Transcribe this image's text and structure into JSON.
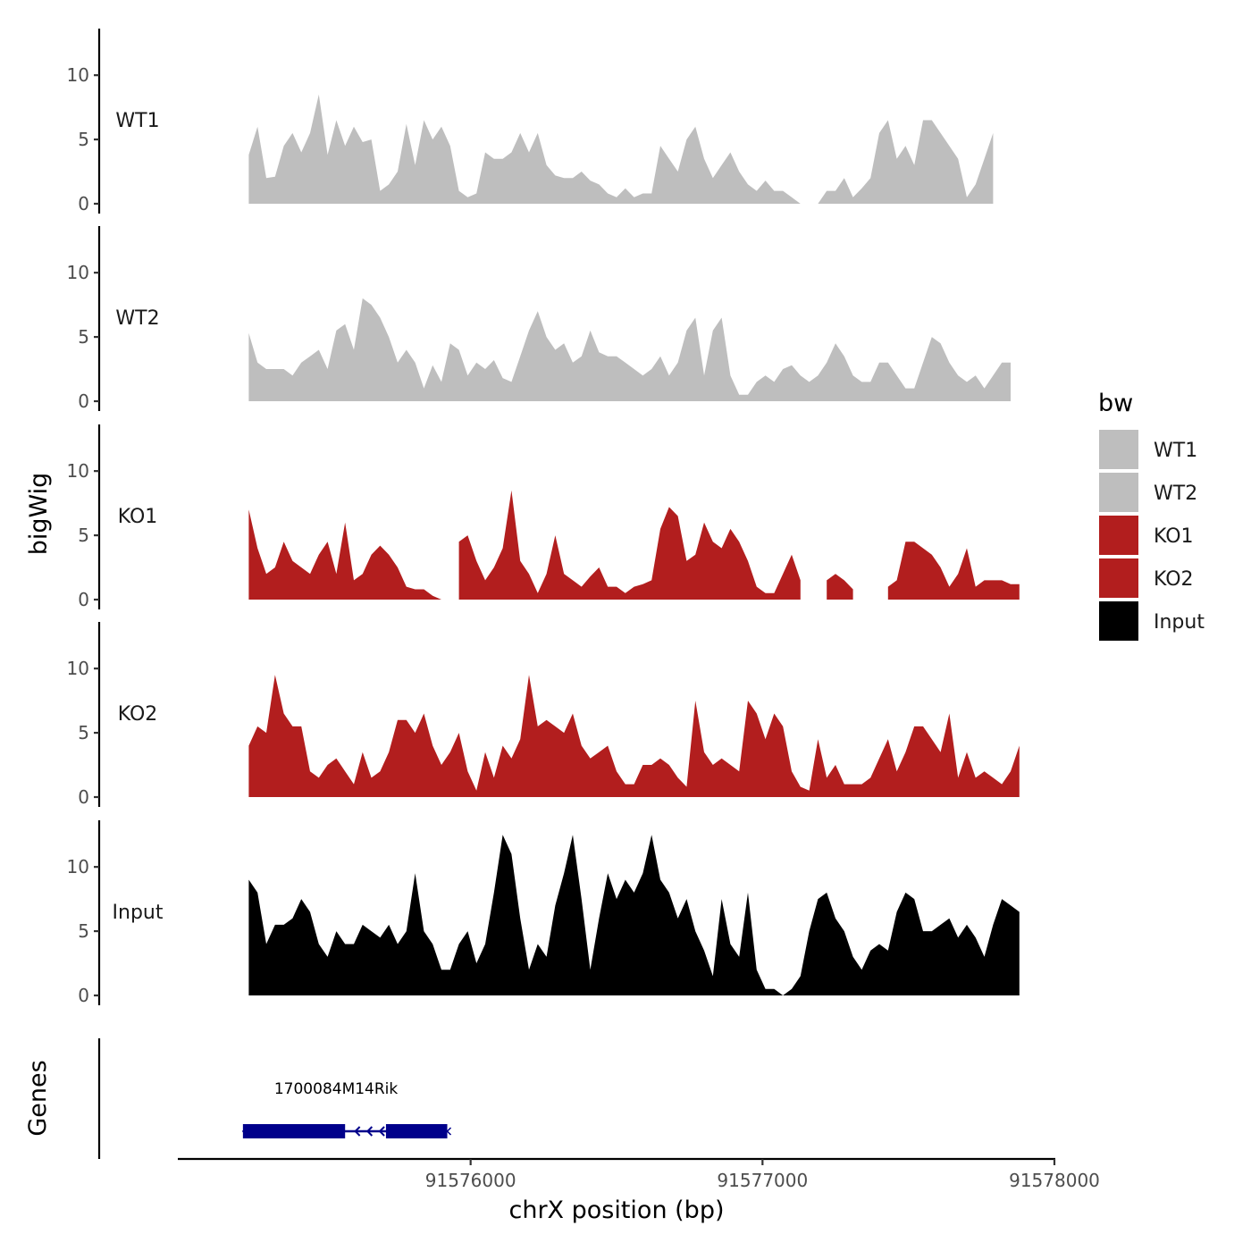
{
  "chart_data": {
    "type": "area",
    "legend": {
      "title": "bw",
      "placement": "right",
      "entries": [
        {
          "name": "WT1",
          "color": "#bebebe"
        },
        {
          "name": "WT2",
          "color": "#bebebe"
        },
        {
          "name": "KO1",
          "color": "#b21e1e"
        },
        {
          "name": "KO2",
          "color": "#b21e1e"
        },
        {
          "name": "Input",
          "color": "#000000"
        }
      ]
    },
    "ylabel": "bigWig",
    "xlabel": "chrX position (bp)",
    "xlim": [
      91575000,
      91578000
    ],
    "x_ticks": [
      91576000,
      91577000,
      91578000
    ],
    "x_tick_labels": [
      "91576000",
      "91577000",
      "91578000"
    ],
    "ylim": [
      0,
      13
    ],
    "y_ticks": [
      0,
      5,
      10
    ],
    "y_tick_labels": [
      "0",
      "5",
      "10"
    ],
    "x": [
      91575240,
      91575270,
      91575300,
      91575330,
      91575360,
      91575390,
      91575420,
      91575450,
      91575480,
      91575510,
      91575540,
      91575570,
      91575600,
      91575630,
      91575660,
      91575690,
      91575720,
      91575750,
      91575780,
      91575810,
      91575840,
      91575870,
      91575900,
      91575930,
      91575960,
      91575990,
      91576020,
      91576050,
      91576080,
      91576110,
      91576140,
      91576170,
      91576200,
      91576230,
      91576260,
      91576290,
      91576320,
      91576350,
      91576380,
      91576410,
      91576440,
      91576470,
      91576500,
      91576530,
      91576560,
      91576590,
      91576620,
      91576650,
      91576680,
      91576710,
      91576740,
      91576770,
      91576800,
      91576830,
      91576860,
      91576890,
      91576920,
      91576950,
      91576980,
      91577010,
      91577040,
      91577070,
      91577100,
      91577130,
      91577160,
      91577190,
      91577220,
      91577250,
      91577280,
      91577310,
      91577340,
      91577370,
      91577400,
      91577430,
      91577460,
      91577490,
      91577520,
      91577550,
      91577580,
      91577610,
      91577640,
      91577670,
      91577700,
      91577730,
      91577760,
      91577790,
      91577820,
      91577850,
      91577880
    ],
    "series": [
      {
        "name": "WT1",
        "color": "#bebebe",
        "values": [
          3.8,
          6.0,
          2.0,
          2.1,
          4.5,
          5.5,
          4.0,
          5.5,
          8.5,
          3.8,
          6.5,
          4.5,
          6.0,
          4.8,
          5.0,
          1.0,
          1.5,
          2.5,
          6.2,
          3.0,
          6.5,
          5.0,
          6.0,
          4.5,
          1.0,
          0.5,
          0.8,
          4.0,
          3.5,
          3.5,
          4.0,
          5.5,
          4.0,
          5.5,
          3.0,
          2.2,
          2.0,
          2.0,
          2.5,
          1.8,
          1.5,
          0.8,
          0.5,
          1.2,
          0.5,
          0.8,
          0.8,
          4.5,
          3.5,
          2.5,
          5.0,
          6.0,
          3.5,
          2.0,
          3.0,
          4.0,
          2.5,
          1.5,
          1.0,
          1.8,
          1.0,
          1.0,
          0.5,
          0.0,
          0.0,
          0.0,
          1.0,
          1.0,
          2.0,
          0.5,
          1.2,
          2.0,
          5.5,
          6.5,
          3.5,
          4.5,
          3.0,
          6.5,
          6.5,
          5.5,
          4.5,
          3.5,
          0.5,
          1.5,
          3.5,
          5.5,
          null,
          null,
          null
        ]
      },
      {
        "name": "WT2",
        "color": "#bebebe",
        "values": [
          5.3,
          3.0,
          2.5,
          2.5,
          2.5,
          2.0,
          3.0,
          3.5,
          4.0,
          2.5,
          5.5,
          6.0,
          4.0,
          8.0,
          7.5,
          6.5,
          5.0,
          3.0,
          4.0,
          3.0,
          1.0,
          2.8,
          1.5,
          4.5,
          4.0,
          2.0,
          3.0,
          2.5,
          3.2,
          1.8,
          1.5,
          3.5,
          5.5,
          7.0,
          5.0,
          4.0,
          4.5,
          3.0,
          3.5,
          5.5,
          3.8,
          3.5,
          3.5,
          3.0,
          2.5,
          2.0,
          2.5,
          3.5,
          2.0,
          3.0,
          5.5,
          6.5,
          2.0,
          5.5,
          6.5,
          2.0,
          0.5,
          0.5,
          1.5,
          2.0,
          1.5,
          2.5,
          2.8,
          2.0,
          1.5,
          2.0,
          3.0,
          4.5,
          3.5,
          2.0,
          1.5,
          1.5,
          3.0,
          3.0,
          2.0,
          1.0,
          1.0,
          3.0,
          5.0,
          4.5,
          3.0,
          2.0,
          1.5,
          2.0,
          1.0,
          2.0,
          3.0,
          3.0,
          null
        ]
      },
      {
        "name": "KO1",
        "color": "#b21e1e",
        "values": [
          7.0,
          4.0,
          2.0,
          2.5,
          4.5,
          3.0,
          2.5,
          2.0,
          3.5,
          4.5,
          2.0,
          6.0,
          1.5,
          2.0,
          3.5,
          4.2,
          3.5,
          2.5,
          1.0,
          0.8,
          0.8,
          0.3,
          0.0,
          null,
          4.5,
          5.0,
          3.0,
          1.5,
          2.5,
          4.0,
          8.5,
          3.0,
          2.0,
          0.5,
          2.0,
          5.0,
          2.0,
          1.5,
          1.0,
          1.8,
          2.5,
          1.0,
          1.0,
          0.5,
          1.0,
          1.2,
          1.5,
          5.5,
          7.2,
          6.5,
          3.0,
          3.5,
          6.0,
          4.5,
          4.0,
          5.5,
          4.5,
          3.0,
          1.0,
          0.5,
          0.5,
          2.0,
          3.5,
          1.5,
          null,
          null,
          1.5,
          2.0,
          1.5,
          0.8,
          null,
          null,
          null,
          1.0,
          1.5,
          4.5,
          4.5,
          4.0,
          3.5,
          2.5,
          1.0,
          2.0,
          4.0,
          1.0,
          1.5,
          1.5,
          1.5,
          1.2,
          1.2
        ]
      },
      {
        "name": "KO2",
        "color": "#b21e1e",
        "values": [
          4.0,
          5.5,
          5.0,
          9.5,
          6.5,
          5.5,
          5.5,
          2.0,
          1.5,
          2.5,
          3.0,
          2.0,
          1.0,
          3.5,
          1.5,
          2.0,
          3.5,
          6.0,
          6.0,
          5.0,
          6.5,
          4.0,
          2.5,
          3.5,
          5.0,
          2.0,
          0.5,
          3.5,
          1.5,
          4.0,
          3.0,
          4.5,
          9.5,
          5.5,
          6.0,
          5.5,
          5.0,
          6.5,
          4.0,
          3.0,
          3.5,
          4.0,
          2.0,
          1.0,
          1.0,
          2.5,
          2.5,
          3.0,
          2.5,
          1.5,
          0.8,
          7.5,
          3.5,
          2.5,
          3.0,
          2.5,
          2.0,
          7.5,
          6.5,
          4.5,
          6.5,
          5.5,
          2.0,
          0.8,
          0.5,
          4.5,
          1.5,
          2.5,
          1.0,
          1.0,
          1.0,
          1.5,
          3.0,
          4.5,
          2.0,
          3.5,
          5.5,
          5.5,
          4.5,
          3.5,
          6.5,
          1.5,
          3.5,
          1.5,
          2.0,
          1.5,
          1.0,
          2.0,
          4.0
        ]
      },
      {
        "name": "Input",
        "color": "#000000",
        "values": [
          9.0,
          8.0,
          4.0,
          5.5,
          5.5,
          6.0,
          7.5,
          6.5,
          4.0,
          3.0,
          5.0,
          4.0,
          4.0,
          5.5,
          5.0,
          4.5,
          5.5,
          4.0,
          5.0,
          9.5,
          5.0,
          4.0,
          2.0,
          2.0,
          4.0,
          5.0,
          2.5,
          4.0,
          8.0,
          12.5,
          11.0,
          6.0,
          2.0,
          4.0,
          3.0,
          7.0,
          9.5,
          12.5,
          7.5,
          2.0,
          6.0,
          9.5,
          7.5,
          9.0,
          8.0,
          9.5,
          12.5,
          9.0,
          8.0,
          6.0,
          7.5,
          5.0,
          3.5,
          1.5,
          7.5,
          4.0,
          3.0,
          8.0,
          2.0,
          0.5,
          0.5,
          0.0,
          0.5,
          1.5,
          5.0,
          7.5,
          8.0,
          6.0,
          5.0,
          3.0,
          2.0,
          3.5,
          4.0,
          3.5,
          6.5,
          8.0,
          7.5,
          5.0,
          5.0,
          5.5,
          6.0,
          4.5,
          5.5,
          4.5,
          3.0,
          5.5,
          7.5,
          7.0,
          6.5
        ]
      }
    ],
    "genes_track": {
      "label": "Genes",
      "genes": [
        {
          "name": "1700084M14Rik",
          "start": 91575220,
          "end": 91575920,
          "strand": "-",
          "exons": [
            [
              91575220,
              91575570
            ],
            [
              91575710,
              91575920
            ]
          ]
        }
      ]
    }
  }
}
